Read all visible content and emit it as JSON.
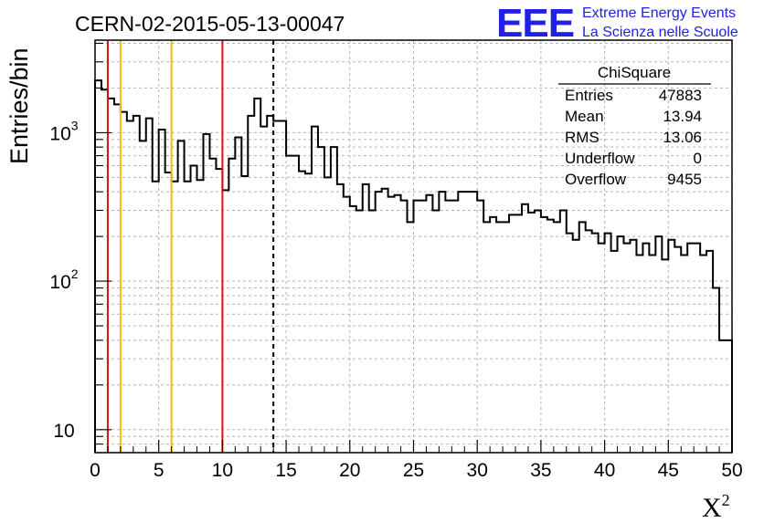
{
  "chart_data": {
    "type": "histogram",
    "title": "CERN-02-2015-05-13-00047",
    "xlabel": "X",
    "xlabel_superscript": "2",
    "ylabel": "Entries/bin",
    "xlim": [
      0,
      50
    ],
    "ylim": [
      7,
      4200
    ],
    "yscale": "log",
    "grid": true,
    "bin_width": 0.5,
    "x_ticks": [
      "0",
      "5",
      "10",
      "15",
      "20",
      "25",
      "30",
      "35",
      "40",
      "45",
      "50"
    ],
    "y_ticks": [
      {
        "base": "10",
        "exp": "",
        "value": 10
      },
      {
        "base": "10",
        "exp": "2",
        "value": 100
      },
      {
        "base": "10",
        "exp": "3",
        "value": 1000
      }
    ],
    "values": [
      2250,
      1950,
      1700,
      1550,
      1380,
      1200,
      1300,
      880,
      1250,
      470,
      1050,
      540,
      470,
      880,
      470,
      600,
      480,
      980,
      670,
      570,
      410,
      670,
      930,
      510,
      1300,
      1700,
      1100,
      1300,
      1200,
      1200,
      700,
      700,
      550,
      530,
      1100,
      800,
      500,
      800,
      450,
      370,
      320,
      300,
      450,
      300,
      400,
      420,
      370,
      380,
      350,
      250,
      350,
      350,
      380,
      300,
      400,
      350,
      350,
      400,
      400,
      400,
      350,
      250,
      270,
      250,
      250,
      280,
      280,
      330,
      290,
      300,
      270,
      260,
      250,
      300,
      210,
      190,
      250,
      220,
      210,
      180,
      210,
      160,
      200,
      180,
      190,
      150,
      180,
      150,
      200,
      140,
      190,
      170,
      150,
      180,
      180,
      150,
      160,
      90,
      40,
      40
    ],
    "vertical_lines": [
      {
        "x": 1,
        "color": "#e01010",
        "style": "solid"
      },
      {
        "x": 2,
        "color": "#f0c000",
        "style": "solid"
      },
      {
        "x": 6,
        "color": "#f0c000",
        "style": "solid"
      },
      {
        "x": 10,
        "color": "#e01010",
        "style": "solid"
      },
      {
        "x": 14,
        "color": "#000000",
        "style": "dashed"
      }
    ],
    "stats": {
      "title": "ChiSquare",
      "rows": [
        {
          "label": "Entries",
          "value": "47883"
        },
        {
          "label": "Mean",
          "value": "13.94"
        },
        {
          "label": "RMS",
          "value": "13.06"
        },
        {
          "label": "Underflow",
          "value": "0"
        },
        {
          "label": "Overflow",
          "value": "9455"
        }
      ]
    }
  },
  "logo": {
    "text": "EEE",
    "line1": "Extreme Energy Events",
    "line2": "La Scienza nelle Scuole",
    "color": "#2020e8"
  }
}
